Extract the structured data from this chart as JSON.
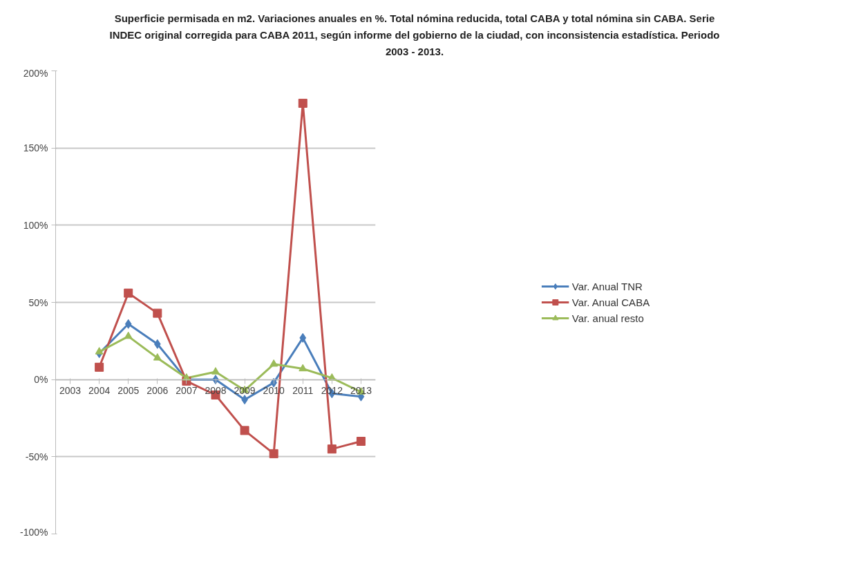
{
  "chart_data": {
    "type": "line",
    "title": "Superficie permisada en m2. Variaciones anuales en %. Total nómina reducida, total CABA y total nómina sin CABA. Serie INDEC original corregida para CABA 2011, según informe del gobierno de la ciudad, con inconsistencia estadística. Periodo 2003 - 2013.",
    "categories": [
      "2003",
      "2004",
      "2005",
      "2006",
      "2007",
      "2008",
      "2009",
      "2010",
      "2011",
      "2012",
      "2013"
    ],
    "series": [
      {
        "name": "Var. Anual TNR",
        "color": "#4a7ebb",
        "marker": "diamond",
        "values": [
          null,
          17,
          36,
          23,
          0,
          0,
          -13,
          -2,
          27,
          -9,
          -11
        ]
      },
      {
        "name": "Var. Anual CABA",
        "color": "#c0504d",
        "marker": "square",
        "values": [
          null,
          8,
          56,
          43,
          -1,
          -10,
          -33,
          -48,
          179,
          -45,
          -40
        ]
      },
      {
        "name": "Var. anual resto",
        "color": "#9bbb59",
        "marker": "triangle",
        "values": [
          null,
          18,
          28,
          14,
          1,
          5,
          -7,
          10,
          7,
          1,
          -8
        ]
      }
    ],
    "ylim": [
      -100,
      200
    ],
    "yticks": [
      {
        "value": -100,
        "label": "-100%"
      },
      {
        "value": -50,
        "label": "-50%"
      },
      {
        "value": 0,
        "label": "0%"
      },
      {
        "value": 50,
        "label": "50%"
      },
      {
        "value": 100,
        "label": "100%"
      },
      {
        "value": 150,
        "label": "150%"
      },
      {
        "value": 200,
        "label": "200%"
      }
    ],
    "grid": "y",
    "legend": "right",
    "line_style": "solid"
  }
}
